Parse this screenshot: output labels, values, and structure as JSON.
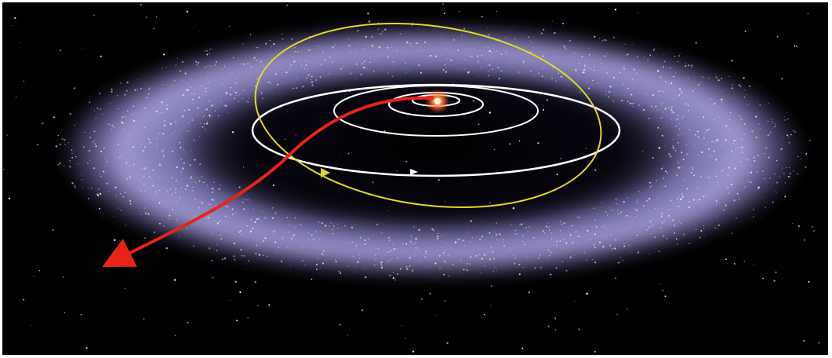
{
  "image": {
    "kind": "illustration",
    "subject": "kuiper-belt",
    "colors": {
      "background": "#000000",
      "border": "#ffffff",
      "belt": "#9f98d6",
      "belt_core": "#c9c4ee",
      "inner_orbits": "#ffffff",
      "tilted_orbit": "#e2d82a",
      "trajectory": "#e8231a",
      "sun": "#ff7a3c"
    },
    "elements": [
      "star-field",
      "kuiper-belt-disk",
      "inner-planet-orbits",
      "tilted-orbit",
      "sun",
      "spacecraft-trajectory-arrow"
    ]
  }
}
